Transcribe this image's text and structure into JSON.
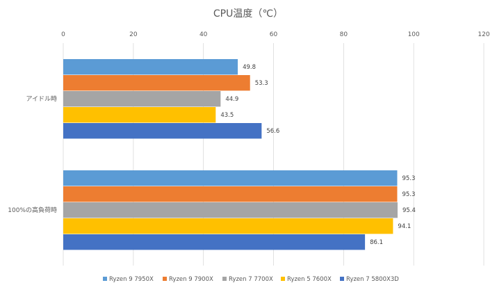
{
  "chart_data": {
    "type": "bar",
    "orientation": "horizontal",
    "title": "CPU温度（℃）",
    "xlabel": "",
    "ylabel": "",
    "xlim": [
      0,
      120
    ],
    "xticks": [
      0,
      20,
      40,
      60,
      80,
      100,
      120
    ],
    "tick_labels": [
      "0",
      "20",
      "40",
      "60",
      "80",
      "100",
      "120"
    ],
    "grid": true,
    "legend_position": "bottom",
    "categories": [
      "アイドル時",
      "100%の高負荷時"
    ],
    "series": [
      {
        "name": "Ryzen 9 7950X",
        "color": "#5B9BD5",
        "values": [
          49.8,
          95.3
        ],
        "labels": [
          "49.8",
          "95.3"
        ]
      },
      {
        "name": "Ryzen 9 7900X",
        "color": "#ED7D31",
        "values": [
          53.3,
          95.3
        ],
        "labels": [
          "53.3",
          "95.3"
        ]
      },
      {
        "name": "Ryzen 7 7700X",
        "color": "#A5A5A5",
        "values": [
          44.9,
          95.4
        ],
        "labels": [
          "44.9",
          "95.4"
        ]
      },
      {
        "name": "Ryzen 5 7600X",
        "color": "#FFC000",
        "values": [
          43.5,
          94.1
        ],
        "labels": [
          "43.5",
          "94.1"
        ]
      },
      {
        "name": "Ryzen 7 5800X3D",
        "color": "#4472C4",
        "values": [
          56.6,
          86.1
        ],
        "labels": [
          "56.6",
          "86.1"
        ]
      }
    ]
  }
}
